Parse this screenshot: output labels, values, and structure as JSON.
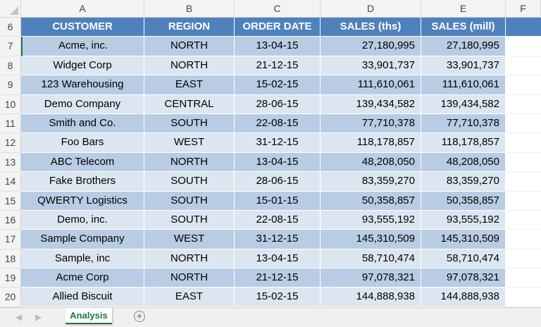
{
  "columns": [
    "A",
    "B",
    "C",
    "D",
    "E",
    "F"
  ],
  "header_row": {
    "num": "6",
    "cells": [
      "CUSTOMER",
      "REGION",
      "ORDER DATE",
      "SALES (ths)",
      "SALES (mill)"
    ]
  },
  "rows": [
    {
      "num": "7",
      "cells": [
        "Acme, inc.",
        "NORTH",
        "13-04-15",
        "27,180,995",
        "27,180,995"
      ]
    },
    {
      "num": "8",
      "cells": [
        "Widget Corp",
        "NORTH",
        "21-12-15",
        "33,901,737",
        "33,901,737"
      ]
    },
    {
      "num": "9",
      "cells": [
        "123 Warehousing",
        "EAST",
        "15-02-15",
        "111,610,061",
        "111,610,061"
      ]
    },
    {
      "num": "10",
      "cells": [
        "Demo Company",
        "CENTRAL",
        "28-06-15",
        "139,434,582",
        "139,434,582"
      ]
    },
    {
      "num": "11",
      "cells": [
        "Smith and Co.",
        "SOUTH",
        "22-08-15",
        "77,710,378",
        "77,710,378"
      ]
    },
    {
      "num": "12",
      "cells": [
        "Foo Bars",
        "WEST",
        "31-12-15",
        "118,178,857",
        "118,178,857"
      ]
    },
    {
      "num": "13",
      "cells": [
        "ABC Telecom",
        "NORTH",
        "13-04-15",
        "48,208,050",
        "48,208,050"
      ]
    },
    {
      "num": "14",
      "cells": [
        "Fake Brothers",
        "SOUTH",
        "28-06-15",
        "83,359,270",
        "83,359,270"
      ]
    },
    {
      "num": "15",
      "cells": [
        "QWERTY Logistics",
        "SOUTH",
        "15-01-15",
        "50,358,857",
        "50,358,857"
      ]
    },
    {
      "num": "16",
      "cells": [
        "Demo, inc.",
        "SOUTH",
        "22-08-15",
        "93,555,192",
        "93,555,192"
      ]
    },
    {
      "num": "17",
      "cells": [
        "Sample Company",
        "WEST",
        "31-12-15",
        "145,310,509",
        "145,310,509"
      ]
    },
    {
      "num": "18",
      "cells": [
        "Sample, inc",
        "NORTH",
        "13-04-15",
        "58,710,474",
        "58,710,474"
      ]
    },
    {
      "num": "19",
      "cells": [
        "Acme Corp",
        "NORTH",
        "21-12-15",
        "97,078,321",
        "97,078,321"
      ]
    },
    {
      "num": "20",
      "cells": [
        "Allied Biscuit",
        "EAST",
        "15-02-15",
        "144,888,938",
        "144,888,938"
      ]
    }
  ],
  "sheet_tabs": {
    "active": "Analysis",
    "add_icon": "plus-circle-icon"
  },
  "colors": {
    "header": "#4f81bd",
    "band_dark": "#b8cce4",
    "band_light": "#dce6f1",
    "tab_accent": "#217346"
  }
}
